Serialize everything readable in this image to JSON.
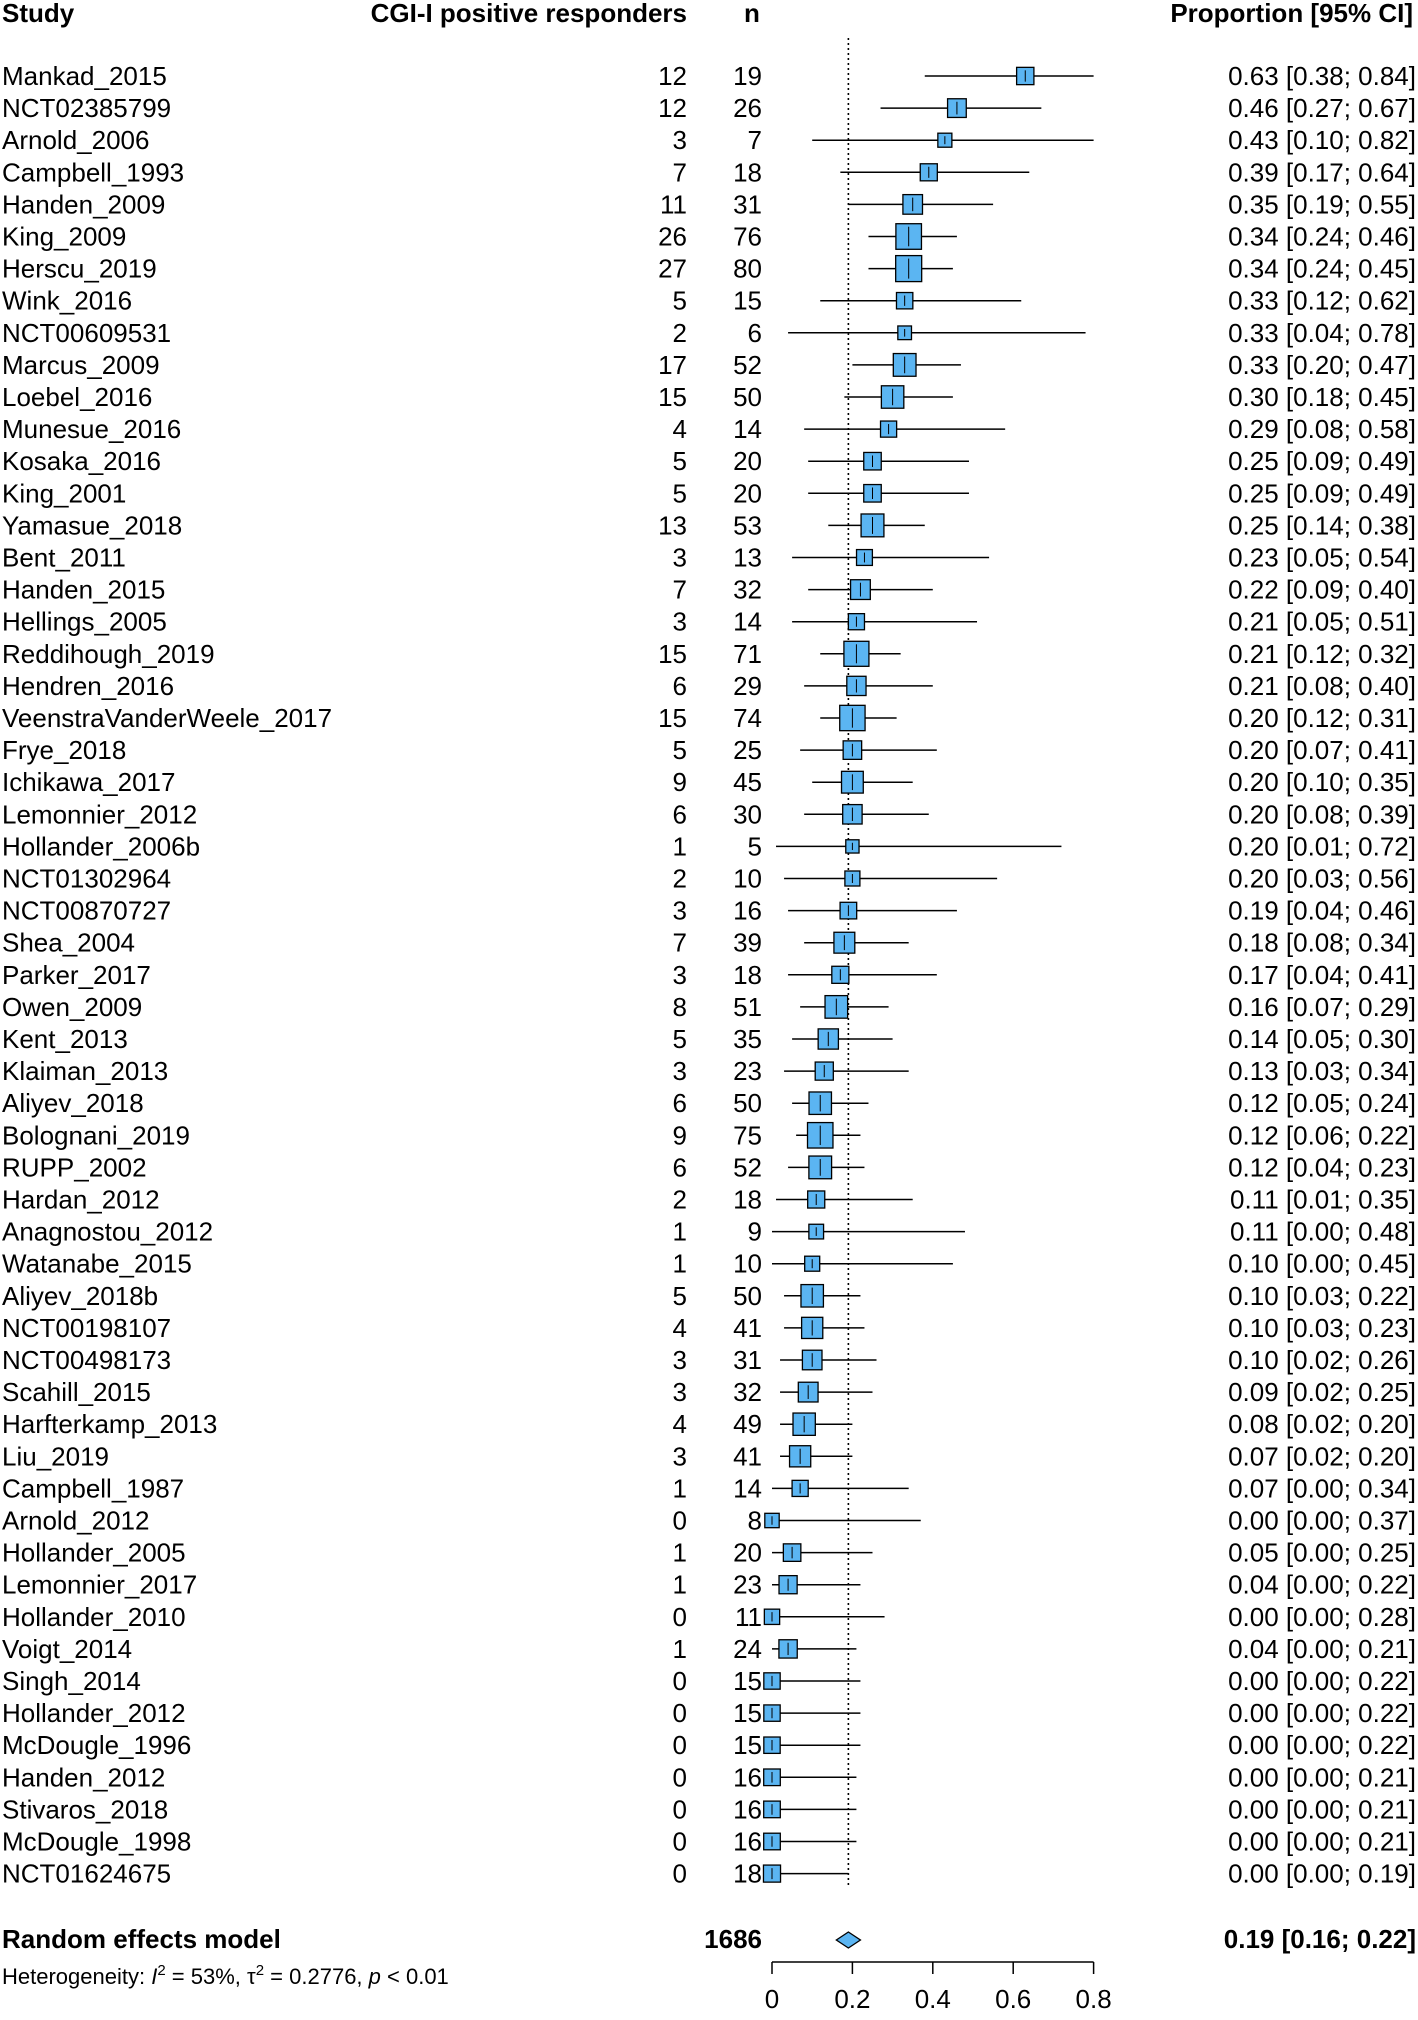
{
  "chart_data": {
    "type": "forest",
    "headers": {
      "study": "Study",
      "responders": "CGI-I positive responders",
      "n": "n",
      "proportion": "Proportion [95% CI]"
    },
    "studies": [
      {
        "name": "Mankad_2015",
        "events": "12",
        "n": "19",
        "est": 0.63,
        "lo": 0.38,
        "hi": 0.84,
        "ci_text": "0.63 [0.38; 0.84]"
      },
      {
        "name": "NCT02385799",
        "events": "12",
        "n": "26",
        "est": 0.46,
        "lo": 0.27,
        "hi": 0.67,
        "ci_text": "0.46 [0.27; 0.67]"
      },
      {
        "name": "Arnold_2006",
        "events": "3",
        "n": "7",
        "est": 0.43,
        "lo": 0.1,
        "hi": 0.82,
        "ci_text": "0.43 [0.10; 0.82]"
      },
      {
        "name": "Campbell_1993",
        "events": "7",
        "n": "18",
        "est": 0.39,
        "lo": 0.17,
        "hi": 0.64,
        "ci_text": "0.39 [0.17; 0.64]"
      },
      {
        "name": "Handen_2009",
        "events": "11",
        "n": "31",
        "est": 0.35,
        "lo": 0.19,
        "hi": 0.55,
        "ci_text": "0.35 [0.19; 0.55]"
      },
      {
        "name": "King_2009",
        "events": "26",
        "n": "76",
        "est": 0.34,
        "lo": 0.24,
        "hi": 0.46,
        "ci_text": "0.34 [0.24; 0.46]"
      },
      {
        "name": "Herscu_2019",
        "events": "27",
        "n": "80",
        "est": 0.34,
        "lo": 0.24,
        "hi": 0.45,
        "ci_text": "0.34 [0.24; 0.45]"
      },
      {
        "name": "Wink_2016",
        "events": "5",
        "n": "15",
        "est": 0.33,
        "lo": 0.12,
        "hi": 0.62,
        "ci_text": "0.33 [0.12; 0.62]"
      },
      {
        "name": "NCT00609531",
        "events": "2",
        "n": "6",
        "est": 0.33,
        "lo": 0.04,
        "hi": 0.78,
        "ci_text": "0.33 [0.04; 0.78]"
      },
      {
        "name": "Marcus_2009",
        "events": "17",
        "n": "52",
        "est": 0.33,
        "lo": 0.2,
        "hi": 0.47,
        "ci_text": "0.33 [0.20; 0.47]"
      },
      {
        "name": "Loebel_2016",
        "events": "15",
        "n": "50",
        "est": 0.3,
        "lo": 0.18,
        "hi": 0.45,
        "ci_text": "0.30 [0.18; 0.45]"
      },
      {
        "name": "Munesue_2016",
        "events": "4",
        "n": "14",
        "est": 0.29,
        "lo": 0.08,
        "hi": 0.58,
        "ci_text": "0.29 [0.08; 0.58]"
      },
      {
        "name": "Kosaka_2016",
        "events": "5",
        "n": "20",
        "est": 0.25,
        "lo": 0.09,
        "hi": 0.49,
        "ci_text": "0.25 [0.09; 0.49]"
      },
      {
        "name": "King_2001",
        "events": "5",
        "n": "20",
        "est": 0.25,
        "lo": 0.09,
        "hi": 0.49,
        "ci_text": "0.25 [0.09; 0.49]"
      },
      {
        "name": "Yamasue_2018",
        "events": "13",
        "n": "53",
        "est": 0.25,
        "lo": 0.14,
        "hi": 0.38,
        "ci_text": "0.25 [0.14; 0.38]"
      },
      {
        "name": "Bent_2011",
        "events": "3",
        "n": "13",
        "est": 0.23,
        "lo": 0.05,
        "hi": 0.54,
        "ci_text": "0.23 [0.05; 0.54]"
      },
      {
        "name": "Handen_2015",
        "events": "7",
        "n": "32",
        "est": 0.22,
        "lo": 0.09,
        "hi": 0.4,
        "ci_text": "0.22 [0.09; 0.40]"
      },
      {
        "name": "Hellings_2005",
        "events": "3",
        "n": "14",
        "est": 0.21,
        "lo": 0.05,
        "hi": 0.51,
        "ci_text": "0.21 [0.05; 0.51]"
      },
      {
        "name": "Reddihough_2019",
        "events": "15",
        "n": "71",
        "est": 0.21,
        "lo": 0.12,
        "hi": 0.32,
        "ci_text": "0.21 [0.12; 0.32]"
      },
      {
        "name": "Hendren_2016",
        "events": "6",
        "n": "29",
        "est": 0.21,
        "lo": 0.08,
        "hi": 0.4,
        "ci_text": "0.21 [0.08; 0.40]"
      },
      {
        "name": "VeenstraVanderWeele_2017",
        "events": "15",
        "n": "74",
        "est": 0.2,
        "lo": 0.12,
        "hi": 0.31,
        "ci_text": "0.20 [0.12; 0.31]"
      },
      {
        "name": "Frye_2018",
        "events": "5",
        "n": "25",
        "est": 0.2,
        "lo": 0.07,
        "hi": 0.41,
        "ci_text": "0.20 [0.07; 0.41]"
      },
      {
        "name": "Ichikawa_2017",
        "events": "9",
        "n": "45",
        "est": 0.2,
        "lo": 0.1,
        "hi": 0.35,
        "ci_text": "0.20 [0.10; 0.35]"
      },
      {
        "name": "Lemonnier_2012",
        "events": "6",
        "n": "30",
        "est": 0.2,
        "lo": 0.08,
        "hi": 0.39,
        "ci_text": "0.20 [0.08; 0.39]"
      },
      {
        "name": "Hollander_2006b",
        "events": "1",
        "n": "5",
        "est": 0.2,
        "lo": 0.01,
        "hi": 0.72,
        "ci_text": "0.20 [0.01; 0.72]"
      },
      {
        "name": "NCT01302964",
        "events": "2",
        "n": "10",
        "est": 0.2,
        "lo": 0.03,
        "hi": 0.56,
        "ci_text": "0.20 [0.03; 0.56]"
      },
      {
        "name": "NCT00870727",
        "events": "3",
        "n": "16",
        "est": 0.19,
        "lo": 0.04,
        "hi": 0.46,
        "ci_text": "0.19 [0.04; 0.46]"
      },
      {
        "name": "Shea_2004",
        "events": "7",
        "n": "39",
        "est": 0.18,
        "lo": 0.08,
        "hi": 0.34,
        "ci_text": "0.18 [0.08; 0.34]"
      },
      {
        "name": "Parker_2017",
        "events": "3",
        "n": "18",
        "est": 0.17,
        "lo": 0.04,
        "hi": 0.41,
        "ci_text": "0.17 [0.04; 0.41]"
      },
      {
        "name": "Owen_2009",
        "events": "8",
        "n": "51",
        "est": 0.16,
        "lo": 0.07,
        "hi": 0.29,
        "ci_text": "0.16 [0.07; 0.29]"
      },
      {
        "name": "Kent_2013",
        "events": "5",
        "n": "35",
        "est": 0.14,
        "lo": 0.05,
        "hi": 0.3,
        "ci_text": "0.14 [0.05; 0.30]"
      },
      {
        "name": "Klaiman_2013",
        "events": "3",
        "n": "23",
        "est": 0.13,
        "lo": 0.03,
        "hi": 0.34,
        "ci_text": "0.13 [0.03; 0.34]"
      },
      {
        "name": "Aliyev_2018",
        "events": "6",
        "n": "50",
        "est": 0.12,
        "lo": 0.05,
        "hi": 0.24,
        "ci_text": "0.12 [0.05; 0.24]"
      },
      {
        "name": "Bolognani_2019",
        "events": "9",
        "n": "75",
        "est": 0.12,
        "lo": 0.06,
        "hi": 0.22,
        "ci_text": "0.12 [0.06; 0.22]"
      },
      {
        "name": "RUPP_2002",
        "events": "6",
        "n": "52",
        "est": 0.12,
        "lo": 0.04,
        "hi": 0.23,
        "ci_text": "0.12 [0.04; 0.23]"
      },
      {
        "name": "Hardan_2012",
        "events": "2",
        "n": "18",
        "est": 0.11,
        "lo": 0.01,
        "hi": 0.35,
        "ci_text": "0.11 [0.01; 0.35]"
      },
      {
        "name": "Anagnostou_2012",
        "events": "1",
        "n": "9",
        "est": 0.11,
        "lo": 0.0,
        "hi": 0.48,
        "ci_text": "0.11 [0.00; 0.48]"
      },
      {
        "name": "Watanabe_2015",
        "events": "1",
        "n": "10",
        "est": 0.1,
        "lo": 0.0,
        "hi": 0.45,
        "ci_text": "0.10 [0.00; 0.45]"
      },
      {
        "name": "Aliyev_2018b",
        "events": "5",
        "n": "50",
        "est": 0.1,
        "lo": 0.03,
        "hi": 0.22,
        "ci_text": "0.10 [0.03; 0.22]"
      },
      {
        "name": "NCT00198107",
        "events": "4",
        "n": "41",
        "est": 0.1,
        "lo": 0.03,
        "hi": 0.23,
        "ci_text": "0.10 [0.03; 0.23]"
      },
      {
        "name": "NCT00498173",
        "events": "3",
        "n": "31",
        "est": 0.1,
        "lo": 0.02,
        "hi": 0.26,
        "ci_text": "0.10 [0.02; 0.26]"
      },
      {
        "name": "Scahill_2015",
        "events": "3",
        "n": "32",
        "est": 0.09,
        "lo": 0.02,
        "hi": 0.25,
        "ci_text": "0.09 [0.02; 0.25]"
      },
      {
        "name": "Harfterkamp_2013",
        "events": "4",
        "n": "49",
        "est": 0.08,
        "lo": 0.02,
        "hi": 0.2,
        "ci_text": "0.08 [0.02; 0.20]"
      },
      {
        "name": "Liu_2019",
        "events": "3",
        "n": "41",
        "est": 0.07,
        "lo": 0.02,
        "hi": 0.2,
        "ci_text": "0.07 [0.02; 0.20]"
      },
      {
        "name": "Campbell_1987",
        "events": "1",
        "n": "14",
        "est": 0.07,
        "lo": 0.0,
        "hi": 0.34,
        "ci_text": "0.07 [0.00; 0.34]"
      },
      {
        "name": "Arnold_2012",
        "events": "0",
        "n": "8",
        "est": 0.0,
        "lo": 0.0,
        "hi": 0.37,
        "ci_text": "0.00 [0.00; 0.37]"
      },
      {
        "name": "Hollander_2005",
        "events": "1",
        "n": "20",
        "est": 0.05,
        "lo": 0.0,
        "hi": 0.25,
        "ci_text": "0.05 [0.00; 0.25]"
      },
      {
        "name": "Lemonnier_2017",
        "events": "1",
        "n": "23",
        "est": 0.04,
        "lo": 0.0,
        "hi": 0.22,
        "ci_text": "0.04 [0.00; 0.22]"
      },
      {
        "name": "Hollander_2010",
        "events": "0",
        "n": "11",
        "est": 0.0,
        "lo": 0.0,
        "hi": 0.28,
        "ci_text": "0.00 [0.00; 0.28]"
      },
      {
        "name": "Voigt_2014",
        "events": "1",
        "n": "24",
        "est": 0.04,
        "lo": 0.0,
        "hi": 0.21,
        "ci_text": "0.04 [0.00; 0.21]"
      },
      {
        "name": "Singh_2014",
        "events": "0",
        "n": "15",
        "est": 0.0,
        "lo": 0.0,
        "hi": 0.22,
        "ci_text": "0.00 [0.00; 0.22]"
      },
      {
        "name": "Hollander_2012",
        "events": "0",
        "n": "15",
        "est": 0.0,
        "lo": 0.0,
        "hi": 0.22,
        "ci_text": "0.00 [0.00; 0.22]"
      },
      {
        "name": "McDougle_1996",
        "events": "0",
        "n": "15",
        "est": 0.0,
        "lo": 0.0,
        "hi": 0.22,
        "ci_text": "0.00 [0.00; 0.22]"
      },
      {
        "name": "Handen_2012",
        "events": "0",
        "n": "16",
        "est": 0.0,
        "lo": 0.0,
        "hi": 0.21,
        "ci_text": "0.00 [0.00; 0.21]"
      },
      {
        "name": "Stivaros_2018",
        "events": "0",
        "n": "16",
        "est": 0.0,
        "lo": 0.0,
        "hi": 0.21,
        "ci_text": "0.00 [0.00; 0.21]"
      },
      {
        "name": "McDougle_1998",
        "events": "0",
        "n": "16",
        "est": 0.0,
        "lo": 0.0,
        "hi": 0.21,
        "ci_text": "0.00 [0.00; 0.21]"
      },
      {
        "name": "NCT01624675",
        "events": "0",
        "n": "18",
        "est": 0.0,
        "lo": 0.0,
        "hi": 0.19,
        "ci_text": "0.00 [0.00; 0.19]"
      }
    ],
    "summary": {
      "label": "Random effects model",
      "total_n": "1686",
      "est": 0.19,
      "lo": 0.16,
      "hi": 0.22,
      "ci_text": "0.19 [0.16; 0.22]"
    },
    "heterogeneity": {
      "prefix": "Heterogeneity: ",
      "i2_symbol": "I",
      "i2_value": " = 53%, ",
      "tau2_symbol": "τ",
      "tau2_value": " = 0.2776, ",
      "p_symbol": "p",
      "p_value": " < 0.01"
    },
    "x_axis": {
      "ticks": [
        0,
        0.2,
        0.4,
        0.6,
        0.8
      ],
      "tick_labels": [
        "0",
        "0.2",
        "0.4",
        "0.6",
        "0.8"
      ],
      "range": [
        0,
        0.8
      ]
    },
    "reference_line": 0.19,
    "colors": {
      "box_fill": "#5bb5f2",
      "box_stroke": "#000000",
      "line": "#000000",
      "diamond_fill": "#5bb5f2"
    }
  }
}
